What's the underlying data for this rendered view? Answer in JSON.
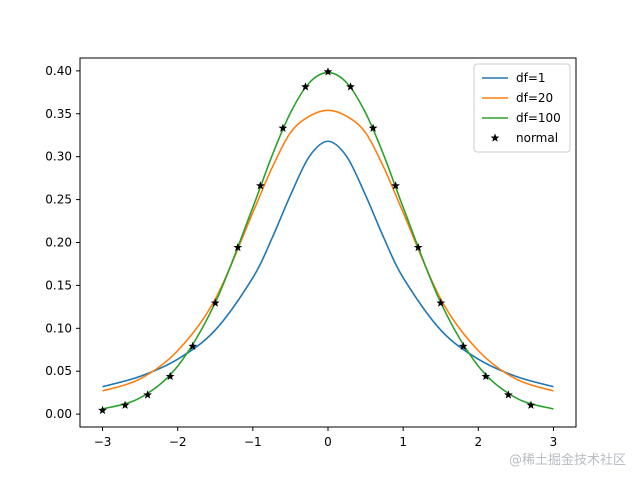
{
  "chart_data": {
    "type": "line",
    "xlim": [
      -3.3,
      3.3
    ],
    "ylim": [
      -0.015,
      0.415
    ],
    "x_ticks": [
      -3,
      -2,
      -1,
      0,
      1,
      2,
      3
    ],
    "x_tick_labels": [
      "−3",
      "−2",
      "−1",
      "0",
      "1",
      "2",
      "3"
    ],
    "y_ticks": [
      0.0,
      0.05,
      0.1,
      0.15,
      0.2,
      0.25,
      0.3,
      0.35,
      0.4
    ],
    "y_tick_labels": [
      "0.00",
      "0.05",
      "0.10",
      "0.15",
      "0.20",
      "0.25",
      "0.30",
      "0.35",
      "0.40"
    ],
    "grid": false,
    "legend_position": "top-right",
    "series": [
      {
        "name": "df=1",
        "style": "line",
        "color": "#1f77b4",
        "x": [
          -3.0,
          -2.5,
          -2.0,
          -1.5,
          -1.0,
          -0.75,
          -0.5,
          -0.25,
          0.0,
          0.25,
          0.5,
          0.75,
          1.0,
          1.5,
          2.0,
          2.5,
          3.0
        ],
        "y": [
          0.032,
          0.044,
          0.064,
          0.098,
          0.159,
          0.204,
          0.255,
          0.3,
          0.318,
          0.3,
          0.255,
          0.204,
          0.159,
          0.098,
          0.064,
          0.044,
          0.032
        ]
      },
      {
        "name": "df=20",
        "style": "line",
        "color": "#ff7f0e",
        "x": [
          -3.0,
          -2.5,
          -2.0,
          -1.5,
          -1.0,
          -0.75,
          -0.5,
          -0.25,
          0.0,
          0.25,
          0.5,
          0.75,
          1.0,
          1.5,
          2.0,
          2.5,
          3.0
        ],
        "y": [
          0.027,
          0.041,
          0.074,
          0.134,
          0.235,
          0.286,
          0.328,
          0.347,
          0.354,
          0.347,
          0.328,
          0.286,
          0.235,
          0.134,
          0.074,
          0.041,
          0.027
        ]
      },
      {
        "name": "df=100",
        "style": "line",
        "color": "#2ca02c",
        "x": [
          -3.0,
          -2.5,
          -2.0,
          -1.5,
          -1.0,
          -0.75,
          -0.5,
          -0.25,
          0.0,
          0.25,
          0.5,
          0.75,
          1.0,
          1.5,
          2.0,
          2.5,
          3.0
        ],
        "y": [
          0.006,
          0.019,
          0.056,
          0.13,
          0.241,
          0.3,
          0.351,
          0.386,
          0.398,
          0.386,
          0.351,
          0.3,
          0.241,
          0.13,
          0.056,
          0.019,
          0.006
        ]
      },
      {
        "name": "normal",
        "style": "markers",
        "marker": "star",
        "color": "#000000",
        "x": [
          -3.0,
          -2.7,
          -2.4,
          -2.1,
          -1.8,
          -1.5,
          -1.2,
          -0.9,
          -0.6,
          -0.3,
          0.0,
          0.3,
          0.6,
          0.9,
          1.2,
          1.5,
          1.8,
          2.1,
          2.4,
          2.7
        ],
        "y": [
          0.0044,
          0.0104,
          0.0224,
          0.044,
          0.079,
          0.1295,
          0.1942,
          0.2661,
          0.3332,
          0.3814,
          0.3989,
          0.3814,
          0.3332,
          0.2661,
          0.1942,
          0.1295,
          0.079,
          0.044,
          0.0224,
          0.0104
        ]
      }
    ]
  },
  "watermark": "@稀土掘金技术社区"
}
